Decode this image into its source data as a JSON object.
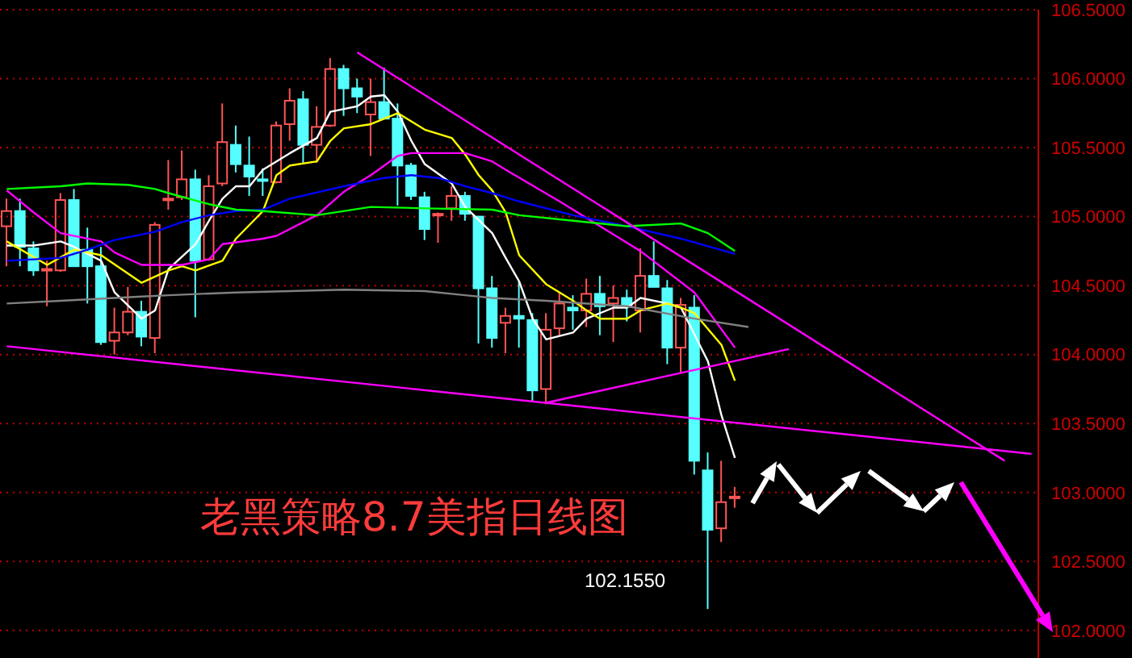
{
  "chart_data": {
    "type": "candlestick",
    "title": "老黑策略8.7美指日线图",
    "categories": [
      null,
      null,
      null,
      null,
      null,
      null,
      null,
      null,
      null,
      null,
      null,
      null,
      null,
      null,
      null,
      null,
      null,
      null,
      null,
      null,
      null,
      null,
      null,
      null,
      null,
      null,
      null,
      null,
      null,
      null,
      null,
      null,
      null,
      null,
      null,
      null,
      null,
      null,
      null,
      null,
      null,
      null,
      null,
      null,
      null,
      null,
      null,
      null,
      null,
      null,
      null,
      null,
      null,
      null,
      null,
      null,
      null,
      null,
      null,
      null,
      null,
      null,
      null,
      null,
      null,
      null,
      null,
      null,
      null,
      null,
      null,
      null,
      null,
      null,
      null,
      null,
      null
    ],
    "ohlc": [
      [
        104.93,
        105.13,
        104.64,
        105.04
      ],
      [
        105.04,
        105.13,
        104.64,
        104.78
      ],
      [
        104.77,
        104.82,
        104.57,
        104.61
      ],
      [
        104.61,
        104.68,
        104.35,
        104.62
      ],
      [
        104.61,
        105.17,
        104.6,
        105.12
      ],
      [
        105.12,
        105.2,
        104.64,
        104.64
      ],
      [
        104.76,
        104.92,
        104.37,
        104.64
      ],
      [
        104.64,
        104.78,
        104.07,
        104.09
      ],
      [
        104.1,
        104.34,
        104.0,
        104.16
      ],
      [
        104.16,
        104.49,
        104.14,
        104.31
      ],
      [
        104.31,
        104.39,
        104.06,
        104.13
      ],
      [
        104.12,
        104.96,
        104.01,
        104.94
      ],
      [
        105.12,
        105.41,
        105.05,
        105.13
      ],
      [
        105.14,
        105.48,
        105.12,
        105.27
      ],
      [
        105.27,
        105.34,
        104.27,
        104.68
      ],
      [
        104.69,
        105.3,
        104.68,
        105.22
      ],
      [
        105.24,
        105.82,
        105.22,
        105.54
      ],
      [
        105.52,
        105.66,
        105.32,
        105.38
      ],
      [
        105.37,
        105.58,
        105.15,
        105.29
      ],
      [
        105.27,
        105.35,
        105.15,
        105.26
      ],
      [
        105.25,
        105.69,
        105.24,
        105.66
      ],
      [
        105.67,
        105.93,
        105.55,
        105.84
      ],
      [
        105.85,
        105.91,
        105.39,
        105.52
      ],
      [
        105.52,
        105.8,
        105.39,
        105.65
      ],
      [
        105.66,
        106.15,
        105.65,
        106.07
      ],
      [
        106.07,
        106.1,
        105.73,
        105.93
      ],
      [
        105.93,
        106.0,
        105.75,
        105.87
      ],
      [
        105.74,
        106.0,
        105.44,
        105.83
      ],
      [
        105.83,
        106.08,
        105.71,
        105.71
      ],
      [
        105.71,
        105.82,
        105.08,
        105.37
      ],
      [
        105.37,
        105.39,
        105.12,
        105.15
      ],
      [
        105.14,
        105.18,
        104.83,
        104.91
      ],
      [
        105.01,
        105.03,
        104.81,
        105.02
      ],
      [
        105.06,
        105.22,
        104.97,
        105.15
      ],
      [
        105.15,
        105.18,
        104.97,
        105.02
      ],
      [
        105.0,
        105.0,
        104.08,
        104.48
      ],
      [
        104.48,
        104.57,
        104.05,
        104.12
      ],
      [
        104.23,
        104.34,
        104.01,
        104.28
      ],
      [
        104.28,
        104.53,
        104.05,
        104.26
      ],
      [
        104.25,
        104.3,
        103.66,
        103.74
      ],
      [
        103.75,
        104.3,
        103.64,
        104.18
      ],
      [
        104.19,
        104.45,
        104.14,
        104.37
      ],
      [
        104.34,
        104.43,
        104.18,
        104.32
      ],
      [
        104.32,
        104.55,
        104.2,
        104.44
      ],
      [
        104.44,
        104.57,
        104.14,
        104.35
      ],
      [
        104.37,
        104.5,
        104.09,
        104.41
      ],
      [
        104.41,
        104.47,
        104.24,
        104.35
      ],
      [
        104.32,
        104.77,
        104.16,
        104.57
      ],
      [
        104.57,
        104.82,
        104.49,
        104.49
      ],
      [
        104.48,
        104.54,
        103.93,
        104.05
      ],
      [
        104.05,
        104.41,
        103.86,
        104.36
      ],
      [
        104.34,
        104.43,
        103.13,
        103.23
      ],
      [
        103.16,
        103.29,
        102.155,
        102.73
      ],
      [
        102.74,
        103.23,
        102.64,
        102.93
      ],
      [
        102.96,
        103.04,
        102.89,
        102.97
      ],
      null,
      null,
      null,
      null,
      null,
      null,
      null,
      null,
      null,
      null,
      null,
      null,
      null,
      null,
      null,
      null,
      null,
      null,
      null,
      null,
      null,
      null
    ],
    "colors": [
      "#ff5555",
      "#55ffff",
      "#55ffff",
      "#ff5555",
      "#ff5555",
      "#55ffff",
      "#55ffff",
      "#55ffff",
      "#ff5555",
      "#ff5555",
      "#55ffff",
      "#ff5555",
      "#ff5555",
      "#ff5555",
      "#55ffff",
      "#ff5555",
      "#ff5555",
      "#55ffff",
      "#55ffff",
      "#55ffff",
      "#ff5555",
      "#ff5555",
      "#55ffff",
      "#ff5555",
      "#ff5555",
      "#55ffff",
      "#55ffff",
      "#ff5555",
      "#55ffff",
      "#55ffff",
      "#55ffff",
      "#55ffff",
      "#ff5555",
      "#ff5555",
      "#55ffff",
      "#55ffff",
      "#55ffff",
      "#ff5555",
      "#55ffff",
      "#55ffff",
      "#ff5555",
      "#ff5555",
      "#55ffff",
      "#ff5555",
      "#55ffff",
      "#ff5555",
      "#55ffff",
      "#ff5555",
      "#55ffff",
      "#55ffff",
      "#ff5555",
      "#55ffff",
      "#55ffff",
      "#ff5555",
      "#ff5555",
      null,
      null,
      null,
      null,
      null,
      null,
      null,
      null,
      null,
      null,
      null,
      null,
      null,
      null,
      null,
      null,
      null,
      null,
      null,
      null,
      null,
      null
    ],
    "series": [
      {
        "type": "line",
        "color": "#ffffff",
        "values": [
          104.79,
          null,
          104.79,
          null,
          104.82,
          104.78,
          null,
          104.68,
          104.45,
          null,
          104.26,
          104.32,
          104.62,
          null,
          104.8,
          104.97,
          105.13,
          105.22,
          105.22,
          105.34,
          null,
          105.46,
          null,
          105.57,
          105.76,
          null,
          105.8,
          105.87,
          105.88,
          105.76,
          105.55,
          105.38,
          null,
          105.24,
          105.07,
          null,
          104.88,
          104.7,
          104.53,
          104.26,
          104.11,
          null,
          104.16,
          104.26,
          null,
          104.34,
          104.34,
          104.41,
          null,
          104.37,
          104.34,
          null,
          103.95,
          103.56,
          103.25,
          null,
          null,
          null,
          null,
          null,
          null,
          null,
          null,
          null,
          null,
          null,
          null,
          null,
          null,
          null,
          null,
          null,
          null,
          null,
          null,
          null,
          null
        ]
      },
      {
        "type": "line",
        "color": "#ffff00",
        "values": [
          104.82,
          null,
          null,
          104.65,
          null,
          104.76,
          null,
          104.72,
          null,
          null,
          104.52,
          null,
          104.61,
          104.64,
          104.61,
          null,
          104.68,
          104.84,
          null,
          105.04,
          105.3,
          105.37,
          null,
          105.4,
          105.55,
          105.64,
          null,
          105.67,
          null,
          105.75,
          null,
          105.63,
          null,
          105.57,
          105.45,
          105.3,
          105.19,
          105.03,
          104.72,
          null,
          104.51,
          null,
          104.39,
          104.32,
          104.26,
          null,
          104.26,
          104.32,
          null,
          104.37,
          104.34,
          104.3,
          null,
          104.07,
          103.81,
          null,
          null,
          null,
          null,
          null,
          null,
          null,
          null,
          null,
          null,
          null,
          null,
          null,
          null,
          null,
          null,
          null,
          null,
          null,
          null,
          null,
          null
        ]
      },
      {
        "type": "line",
        "color": "#ff00ff",
        "values": [
          105.19,
          null,
          105.03,
          null,
          104.88,
          null,
          null,
          104.82,
          104.74,
          null,
          104.65,
          null,
          null,
          104.65,
          null,
          104.69,
          104.8,
          null,
          null,
          104.84,
          104.86,
          null,
          null,
          105.01,
          null,
          105.18,
          null,
          105.3,
          null,
          105.44,
          105.46,
          null,
          null,
          105.46,
          105.46,
          null,
          105.4,
          105.34,
          null,
          null,
          null,
          105.11,
          null,
          null,
          null,
          null,
          null,
          104.75,
          null,
          null,
          null,
          104.45,
          null,
          null,
          104.05,
          null,
          null,
          null,
          null,
          null,
          null,
          null,
          null,
          null,
          null,
          null,
          null,
          null,
          null,
          null,
          null,
          null,
          null,
          null,
          null,
          null,
          null
        ]
      },
      {
        "type": "line",
        "color": "#0000ff",
        "values": [
          104.68,
          null,
          null,
          null,
          104.7,
          null,
          104.76,
          null,
          104.83,
          null,
          null,
          104.89,
          null,
          104.96,
          null,
          105.01,
          null,
          105.04,
          null,
          105.05,
          null,
          105.13,
          null,
          null,
          null,
          105.22,
          null,
          null,
          105.28,
          null,
          105.3,
          null,
          105.28,
          null,
          105.22,
          null,
          105.17,
          null,
          105.11,
          null,
          null,
          null,
          105.01,
          null,
          null,
          null,
          104.93,
          null,
          null,
          null,
          104.84,
          null,
          null,
          null,
          104.73,
          null,
          null,
          null,
          null,
          null,
          null,
          null,
          null,
          null,
          null,
          null,
          null,
          null,
          null,
          null,
          null,
          null,
          null,
          null,
          null,
          null,
          null
        ]
      },
      {
        "type": "line",
        "color": "#00ff00",
        "values": [
          105.2,
          null,
          null,
          null,
          105.22,
          null,
          105.24,
          null,
          null,
          105.23,
          null,
          105.2,
          105.17,
          null,
          null,
          105.09,
          null,
          105.05,
          null,
          105.04,
          null,
          null,
          null,
          105.01,
          null,
          null,
          null,
          105.07,
          null,
          null,
          null,
          105.06,
          null,
          null,
          null,
          null,
          105.05,
          null,
          105.01,
          null,
          null,
          null,
          104.97,
          null,
          null,
          null,
          104.93,
          null,
          null,
          null,
          104.95,
          null,
          104.88,
          null,
          104.75,
          null,
          null,
          null,
          null,
          null,
          null,
          null,
          null,
          null,
          null,
          null,
          null,
          null,
          null,
          null,
          null,
          null,
          null,
          null,
          null,
          null,
          null
        ]
      },
      {
        "type": "line",
        "color": "#808080",
        "values": [
          104.37,
          null,
          null,
          null,
          104.39,
          null,
          null,
          null,
          null,
          null,
          104.42,
          null,
          104.43,
          null,
          null,
          null,
          null,
          104.45,
          null,
          null,
          null,
          104.46,
          null,
          null,
          null,
          104.47,
          null,
          null,
          null,
          null,
          null,
          104.46,
          null,
          null,
          104.43,
          null,
          104.41,
          null,
          null,
          null,
          104.39,
          null,
          null,
          null,
          null,
          null,
          104.35,
          null,
          null,
          null,
          null,
          104.26,
          null,
          null,
          null,
          104.2,
          null,
          null,
          null,
          null,
          null,
          null,
          null,
          null,
          null,
          null,
          null,
          null,
          null,
          null,
          null,
          null,
          null,
          null,
          null,
          null,
          null
        ]
      },
      {
        "type": "line",
        "color": "#ff00ff",
        "values": [
          null,
          null,
          null,
          null,
          null,
          null,
          null,
          null,
          null,
          null,
          null,
          null,
          null,
          null,
          null,
          null,
          null,
          null,
          null,
          null,
          null,
          null,
          null,
          null,
          null,
          null,
          106.19,
          null,
          null,
          null,
          null,
          null,
          null,
          null,
          null,
          null,
          null,
          null,
          null,
          null,
          null,
          null,
          null,
          null,
          null,
          null,
          null,
          null,
          null,
          null,
          null,
          null,
          null,
          null,
          null,
          null,
          null,
          null,
          null,
          null,
          null,
          null,
          null,
          null,
          null,
          null,
          null,
          null,
          null,
          null,
          null,
          null,
          null,
          null,
          103.23,
          null,
          null
        ]
      },
      {
        "type": "line",
        "color": "#ff00ff",
        "values": [
          104.06,
          null,
          null,
          null,
          null,
          null,
          null,
          null,
          null,
          null,
          null,
          null,
          null,
          null,
          null,
          null,
          null,
          null,
          null,
          null,
          null,
          null,
          null,
          null,
          null,
          null,
          null,
          null,
          null,
          null,
          null,
          null,
          null,
          null,
          null,
          null,
          null,
          null,
          null,
          null,
          null,
          null,
          null,
          null,
          null,
          null,
          null,
          null,
          null,
          null,
          null,
          null,
          null,
          null,
          null,
          null,
          null,
          null,
          null,
          null,
          null,
          null,
          null,
          null,
          null,
          null,
          null,
          null,
          null,
          null,
          null,
          null,
          null,
          null,
          null,
          null,
          103.28
        ]
      },
      {
        "type": "line",
        "color": "#ff00ff",
        "values": [
          null,
          null,
          null,
          null,
          null,
          null,
          null,
          null,
          null,
          null,
          null,
          null,
          null,
          null,
          null,
          null,
          null,
          null,
          null,
          null,
          null,
          null,
          null,
          null,
          null,
          null,
          null,
          null,
          null,
          null,
          null,
          null,
          null,
          null,
          null,
          null,
          null,
          null,
          null,
          null,
          103.65,
          null,
          null,
          null,
          null,
          null,
          null,
          null,
          null,
          null,
          null,
          null,
          null,
          null,
          null,
          null,
          null,
          null,
          104.04,
          null,
          null,
          null,
          null,
          null,
          null,
          null,
          null,
          null,
          null,
          null,
          null,
          null,
          null,
          null,
          null,
          null,
          null
        ]
      }
    ],
    "ylim": [
      101.8,
      106.5
    ],
    "yticks": [
      {
        "value": 102,
        "label": "102.0000"
      },
      {
        "value": 102.5,
        "label": "102.5000"
      },
      {
        "value": 103,
        "label": "103.0000"
      },
      {
        "value": 103.5,
        "label": "103.5000"
      },
      {
        "value": 104,
        "label": "104.0000"
      },
      {
        "value": 104.5,
        "label": "104.5000"
      },
      {
        "value": 105,
        "label": "105.0000"
      },
      {
        "value": 105.5,
        "label": "105.5000"
      },
      {
        "value": 106,
        "label": "106.0000"
      },
      {
        "value": 106.5,
        "label": "106.5000"
      }
    ],
    "grid": "y",
    "tick_labels": "y",
    "annotations": [
      "102.1550"
    ]
  }
}
